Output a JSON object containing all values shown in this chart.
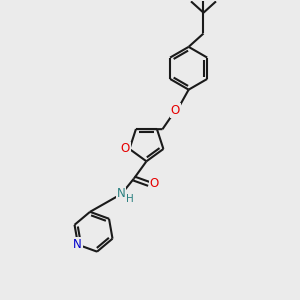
{
  "bg_color": "#ebebeb",
  "bond_color": "#1a1a1a",
  "oxygen_color": "#e60000",
  "nitrogen_color": "#0000cc",
  "nitrogen_amide_color": "#2a8080",
  "line_width": 1.5,
  "fig_width": 3.0,
  "fig_height": 3.0,
  "dpi": 100,
  "xlim": [
    0,
    10
  ],
  "ylim": [
    0,
    10
  ]
}
